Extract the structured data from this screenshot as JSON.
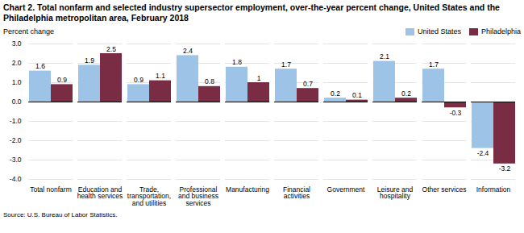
{
  "chart_data": {
    "type": "bar",
    "title": "Chart 2. Total nonfarm and selected industry supersector employment, over-the-year percent change, United States and the Philadelphia metropolitan area, February 2018",
    "y_label": "Percent change",
    "source": "Source: U.S. Bureau of Labor Statistics.",
    "categories": [
      "Total nonfarm",
      "Education and\nhealth services",
      "Trade,\ntransportation,\nand utilities",
      "Professional\nand business\nservices",
      "Manufacturing",
      "Financial\nactivities",
      "Government",
      "Leisure and\nhospitality",
      "Other services",
      "Information"
    ],
    "series": [
      {
        "name": "United States",
        "color": "#9dc3e6",
        "values": [
          1.6,
          1.9,
          0.9,
          2.4,
          1.8,
          1.7,
          0.2,
          2.1,
          1.7,
          -2.4
        ]
      },
      {
        "name": "Philadelphia",
        "color": "#7b2c45",
        "values": [
          0.9,
          2.5,
          1.1,
          0.8,
          1.0,
          0.7,
          0.1,
          0.2,
          -0.3,
          -3.2
        ]
      }
    ],
    "ylim": [
      -4.0,
      3.0
    ],
    "yticks": [
      {
        "value": -4.0,
        "label": "-4.0"
      },
      {
        "value": -3.0,
        "label": "-3.0"
      },
      {
        "value": -2.0,
        "label": "-2.0"
      },
      {
        "value": -1.0,
        "label": "-1.0"
      },
      {
        "value": 0.0,
        "label": "0.0"
      },
      {
        "value": 1.0,
        "label": "1.0"
      },
      {
        "value": 2.0,
        "label": "2.0"
      },
      {
        "value": 3.0,
        "label": "3.0"
      }
    ],
    "grid": true,
    "legend": "top-right",
    "data_labels": true
  }
}
